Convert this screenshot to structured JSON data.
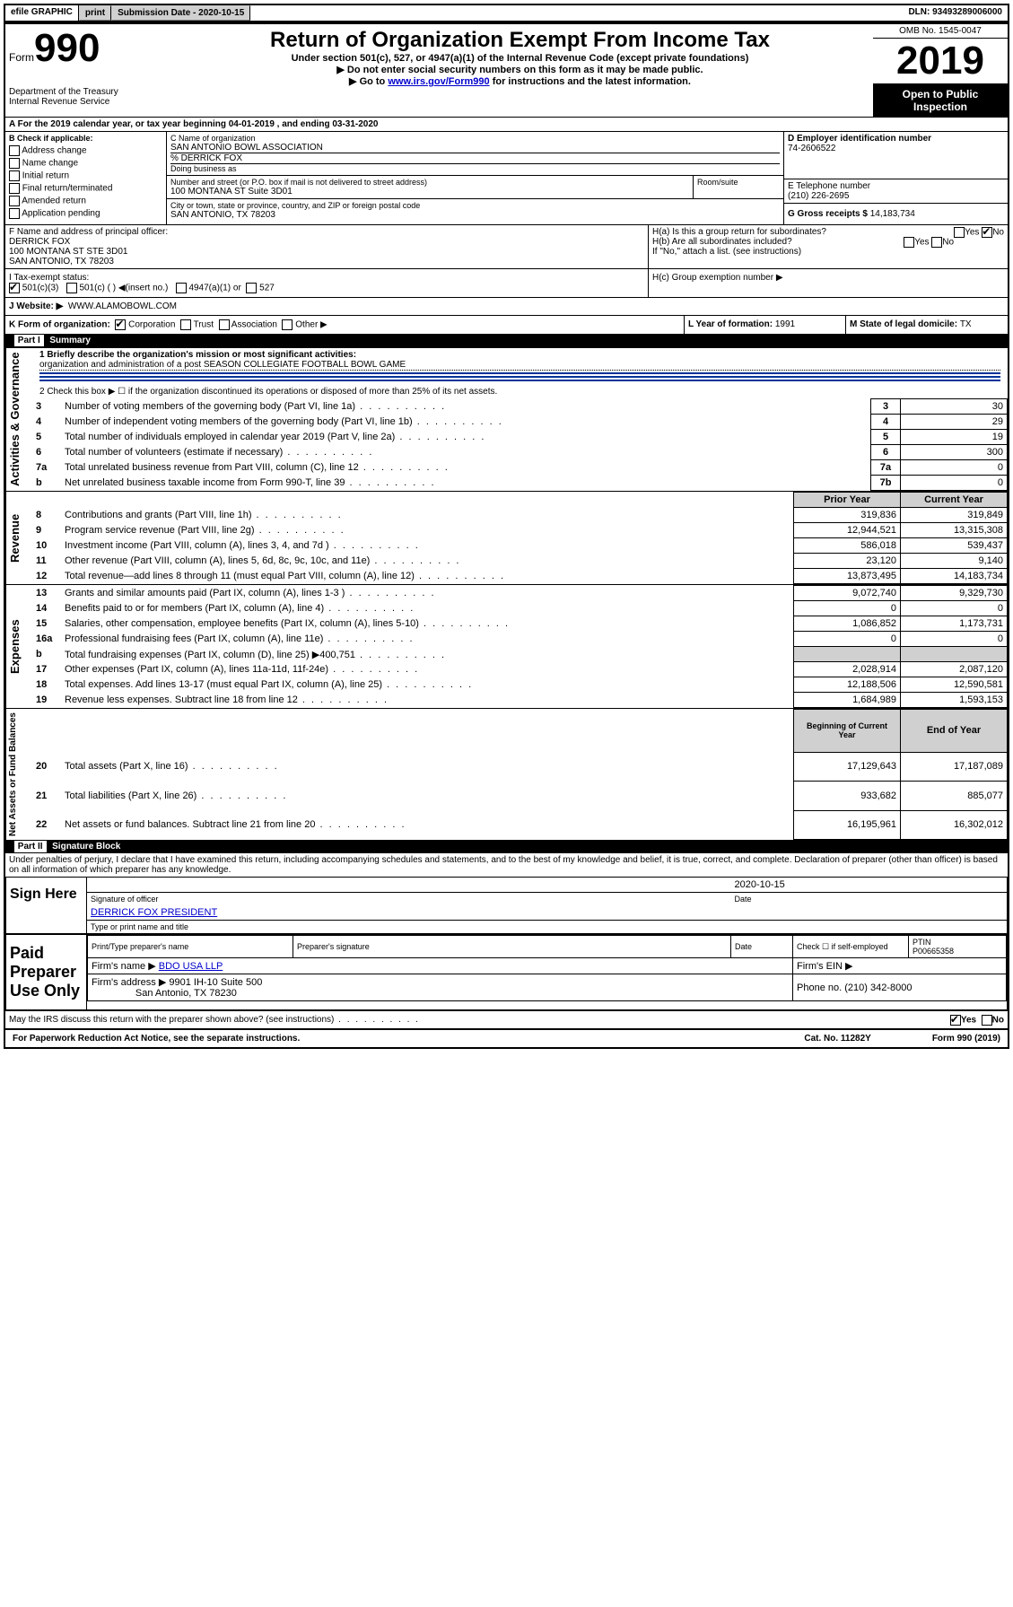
{
  "top_bar": {
    "efile": "efile GRAPHIC",
    "print": "print",
    "submission_label": "Submission Date - ",
    "submission_date": "2020-10-15",
    "dln_label": "DLN: ",
    "dln": "93493289006000"
  },
  "header": {
    "form_label": "Form",
    "form_number": "990",
    "dept": "Department of the Treasury\nInternal Revenue Service",
    "title": "Return of Organization Exempt From Income Tax",
    "subtitle": "Under section 501(c), 527, or 4947(a)(1) of the Internal Revenue Code (except private foundations)",
    "note1": "▶ Do not enter social security numbers on this form as it may be made public.",
    "note2_pre": "▶ Go to ",
    "note2_link": "www.irs.gov/Form990",
    "note2_post": " for instructions and the latest information.",
    "omb": "OMB No. 1545-0047",
    "year": "2019",
    "open_to_public": "Open to Public Inspection"
  },
  "period": {
    "a_label": "A For the 2019 calendar year, or tax year beginning ",
    "begin": "04-01-2019",
    "mid": " , and ending ",
    "end": "03-31-2020"
  },
  "section_b": {
    "label": "B Check if applicable:",
    "options": [
      "Address change",
      "Name change",
      "Initial return",
      "Final return/terminated",
      "Amended return",
      "Application pending"
    ]
  },
  "section_c": {
    "name_label": "C Name of organization",
    "name": "SAN ANTONIO BOWL ASSOCIATION",
    "care_of": "% DERRICK FOX",
    "dba_label": "Doing business as",
    "addr_label": "Number and street (or P.O. box if mail is not delivered to street address)",
    "addr": "100 MONTANA ST Suite 3D01",
    "room_label": "Room/suite",
    "city_label": "City or town, state or province, country, and ZIP or foreign postal code",
    "city": "SAN ANTONIO, TX  78203"
  },
  "section_d": {
    "label": "D Employer identification number",
    "value": "74-2606522"
  },
  "section_e": {
    "label": "E Telephone number",
    "value": "(210) 226-2695"
  },
  "section_g": {
    "label": "G Gross receipts $ ",
    "value": "14,183,734"
  },
  "section_f": {
    "label": "F  Name and address of principal officer:",
    "name": "DERRICK FOX",
    "addr1": "100 MONTANA ST STE 3D01",
    "addr2": "SAN ANTONIO, TX  78203"
  },
  "section_h": {
    "ha": "H(a)  Is this a group return for subordinates?",
    "hb": "H(b)  Are all subordinates included?",
    "hb_note": "If \"No,\" attach a list. (see instructions)",
    "hc": "H(c)  Group exemption number ▶",
    "yes": "Yes",
    "no": "No"
  },
  "tax_status": {
    "i_label": "I  Tax-exempt status:",
    "options": [
      "501(c)(3)",
      "501(c) (  ) ◀(insert no.)",
      "4947(a)(1) or",
      "527"
    ]
  },
  "section_j": {
    "label": "J  Website: ▶",
    "value": "WWW.ALAMOBOWL.COM"
  },
  "section_k": {
    "label": "K Form of organization:",
    "options": [
      "Corporation",
      "Trust",
      "Association",
      "Other ▶"
    ]
  },
  "section_l": {
    "label": "L Year of formation: ",
    "value": "1991"
  },
  "section_m": {
    "label": "M State of legal domicile: ",
    "value": "TX"
  },
  "part1": {
    "header_part": "Part I",
    "header_title": "Summary",
    "line1_label": "1  Briefly describe the organization's mission or most significant activities:",
    "line1_text": "organization and administration of a post SEASON COLLEGIATE FOOTBALL BOWL GAME",
    "line2": "2   Check this box ▶ ☐  if the organization discontinued its operations or disposed of more than 25% of its net assets.",
    "rows_gov": [
      {
        "no": "3",
        "label": "Number of voting members of the governing body (Part VI, line 1a)",
        "box": "3",
        "val": "30"
      },
      {
        "no": "4",
        "label": "Number of independent voting members of the governing body (Part VI, line 1b)",
        "box": "4",
        "val": "29"
      },
      {
        "no": "5",
        "label": "Total number of individuals employed in calendar year 2019 (Part V, line 2a)",
        "box": "5",
        "val": "19"
      },
      {
        "no": "6",
        "label": "Total number of volunteers (estimate if necessary)",
        "box": "6",
        "val": "300"
      },
      {
        "no": "7a",
        "label": "Total unrelated business revenue from Part VIII, column (C), line 12",
        "box": "7a",
        "val": "0"
      },
      {
        "no": " b",
        "label": "Net unrelated business taxable income from Form 990-T, line 39",
        "box": "7b",
        "val": "0"
      }
    ],
    "col_prior": "Prior Year",
    "col_current": "Current Year",
    "rows_rev": [
      {
        "no": "8",
        "label": "Contributions and grants (Part VIII, line 1h)",
        "p": "319,836",
        "c": "319,849"
      },
      {
        "no": "9",
        "label": "Program service revenue (Part VIII, line 2g)",
        "p": "12,944,521",
        "c": "13,315,308"
      },
      {
        "no": "10",
        "label": "Investment income (Part VIII, column (A), lines 3, 4, and 7d )",
        "p": "586,018",
        "c": "539,437"
      },
      {
        "no": "11",
        "label": "Other revenue (Part VIII, column (A), lines 5, 6d, 8c, 9c, 10c, and 11e)",
        "p": "23,120",
        "c": "9,140"
      },
      {
        "no": "12",
        "label": "Total revenue—add lines 8 through 11 (must equal Part VIII, column (A), line 12)",
        "p": "13,873,495",
        "c": "14,183,734"
      }
    ],
    "rows_exp": [
      {
        "no": "13",
        "label": "Grants and similar amounts paid (Part IX, column (A), lines 1-3 )",
        "p": "9,072,740",
        "c": "9,329,730"
      },
      {
        "no": "14",
        "label": "Benefits paid to or for members (Part IX, column (A), line 4)",
        "p": "0",
        "c": "0"
      },
      {
        "no": "15",
        "label": "Salaries, other compensation, employee benefits (Part IX, column (A), lines 5-10)",
        "p": "1,086,852",
        "c": "1,173,731"
      },
      {
        "no": "16a",
        "label": "Professional fundraising fees (Part IX, column (A), line 11e)",
        "p": "0",
        "c": "0"
      },
      {
        "no": " b",
        "label": "Total fundraising expenses (Part IX, column (D), line 25) ▶400,751",
        "p": "",
        "c": "",
        "gray": true
      },
      {
        "no": "17",
        "label": "Other expenses (Part IX, column (A), lines 11a-11d, 11f-24e)",
        "p": "2,028,914",
        "c": "2,087,120"
      },
      {
        "no": "18",
        "label": "Total expenses. Add lines 13-17 (must equal Part IX, column (A), line 25)",
        "p": "12,188,506",
        "c": "12,590,581"
      },
      {
        "no": "19",
        "label": "Revenue less expenses. Subtract line 18 from line 12",
        "p": "1,684,989",
        "c": "1,593,153"
      }
    ],
    "col_begin": "Beginning of Current Year",
    "col_end": "End of Year",
    "rows_net": [
      {
        "no": "20",
        "label": "Total assets (Part X, line 16)",
        "p": "17,129,643",
        "c": "17,187,089"
      },
      {
        "no": "21",
        "label": "Total liabilities (Part X, line 26)",
        "p": "933,682",
        "c": "885,077"
      },
      {
        "no": "22",
        "label": "Net assets or fund balances. Subtract line 21 from line 20",
        "p": "16,195,961",
        "c": "16,302,012"
      }
    ],
    "vlabels": {
      "gov": "Activities & Governance",
      "rev": "Revenue",
      "exp": "Expenses",
      "net": "Net Assets or Fund Balances"
    }
  },
  "part2": {
    "header_part": "Part II",
    "header_title": "Signature Block",
    "declaration": "Under penalties of perjury, I declare that I have examined this return, including accompanying schedules and statements, and to the best of my knowledge and belief, it is true, correct, and complete. Declaration of preparer (other than officer) is based on all information of which preparer has any knowledge.",
    "sign_here": "Sign Here",
    "sig_officer": "Signature of officer",
    "date": "2020-10-15",
    "date_label": "Date",
    "officer_name": "DERRICK FOX PRESIDENT",
    "type_name": "Type or print name and title",
    "paid": "Paid Preparer Use Only",
    "preparer_name_label": "Print/Type preparer's name",
    "preparer_sig_label": "Preparer's signature",
    "check_self": "Check ☐ if self-employed",
    "ptin_label": "PTIN",
    "ptin": "P00665358",
    "firm_name_label": "Firm's name   ▶",
    "firm_name": "BDO USA LLP",
    "firm_ein_label": "Firm's EIN ▶",
    "firm_addr_label": "Firm's address ▶",
    "firm_addr1": "9901 IH-10 Suite 500",
    "firm_addr2": "San Antonio, TX  78230",
    "phone_label": "Phone no. ",
    "phone": "(210) 342-8000",
    "discuss": "May the IRS discuss this return with the preparer shown above? (see instructions)"
  },
  "footer": {
    "paperwork": "For Paperwork Reduction Act Notice, see the separate instructions.",
    "cat": "Cat. No. 11282Y",
    "form": "Form 990 (2019)"
  }
}
